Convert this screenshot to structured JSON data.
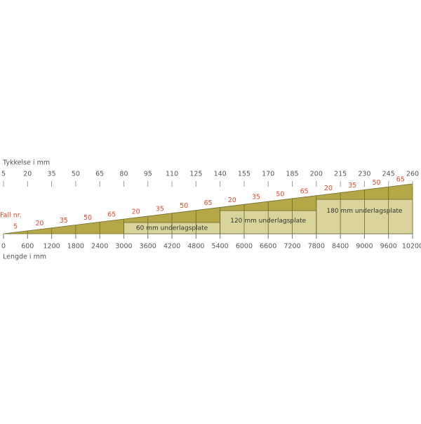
{
  "top_axis": {
    "label": "Tykkelse i mm",
    "ticks": [
      "5",
      "20",
      "35",
      "50",
      "65",
      "80",
      "95",
      "110",
      "125",
      "140",
      "155",
      "170",
      "185",
      "200",
      "215",
      "230",
      "245",
      "260"
    ]
  },
  "fall_label": "Fall nr.",
  "fall_numbers": [
    "5",
    "20",
    "35",
    "50",
    "65",
    "20",
    "35",
    "50",
    "65",
    "20",
    "35",
    "50",
    "65",
    "20",
    "35",
    "50",
    "65"
  ],
  "boards": [
    "60 mm underlagsplate",
    "120 mm underlagsplate",
    "180 mm underlagsplate"
  ],
  "bottom_axis": {
    "label": "Lengde i mm",
    "ticks": [
      "0",
      "600",
      "1200",
      "1800",
      "2400",
      "3000",
      "3600",
      "4200",
      "4800",
      "5400",
      "6000",
      "6600",
      "7200",
      "7800",
      "8400",
      "9000",
      "9600",
      "10200"
    ]
  }
}
